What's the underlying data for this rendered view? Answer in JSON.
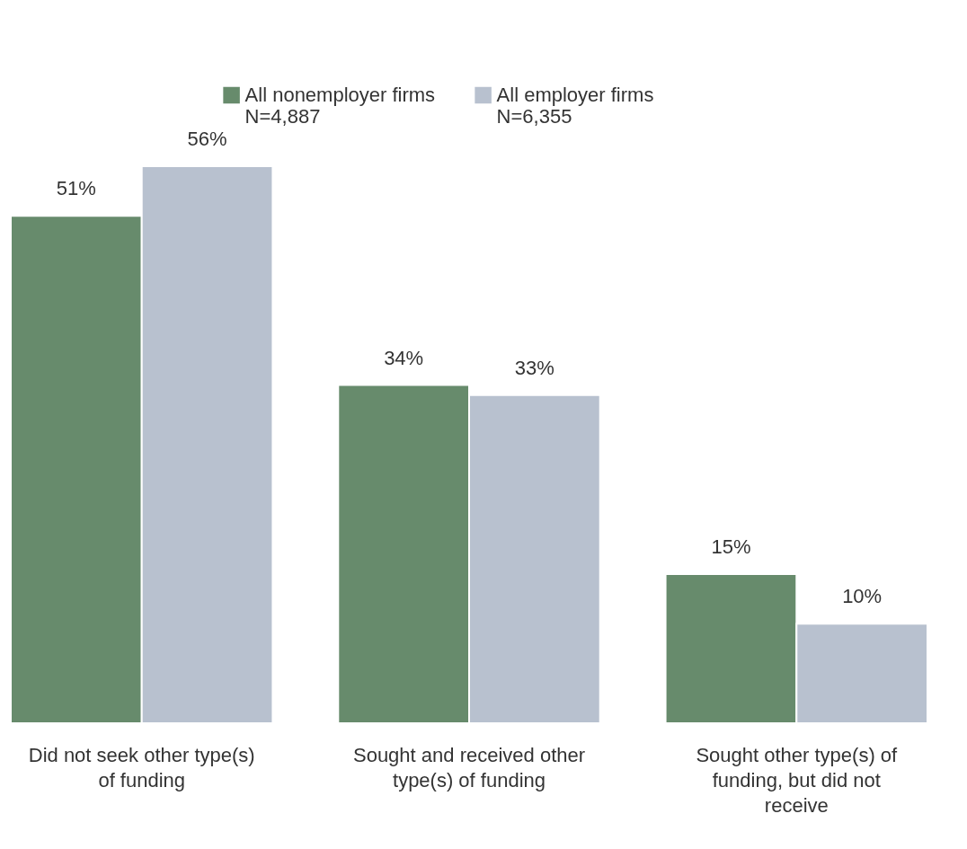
{
  "chart_data": {
    "type": "bar",
    "categories": [
      "Did not seek other type(s) of funding",
      "Sought and received other type(s) of funding",
      "Sought other type(s) of funding, but did not receive"
    ],
    "series": [
      {
        "name": "All nonemployer firms\nN=4,887",
        "color": "#678b6c",
        "values": [
          51,
          34,
          15
        ],
        "value_labels": [
          "51%",
          "34%",
          "15%"
        ]
      },
      {
        "name": "All employer firms\nN=6,355",
        "color": "#b8c1cf",
        "values": [
          56,
          33,
          10
        ],
        "value_labels": [
          "56%",
          "33%",
          "10%"
        ]
      }
    ],
    "legend": "top"
  }
}
